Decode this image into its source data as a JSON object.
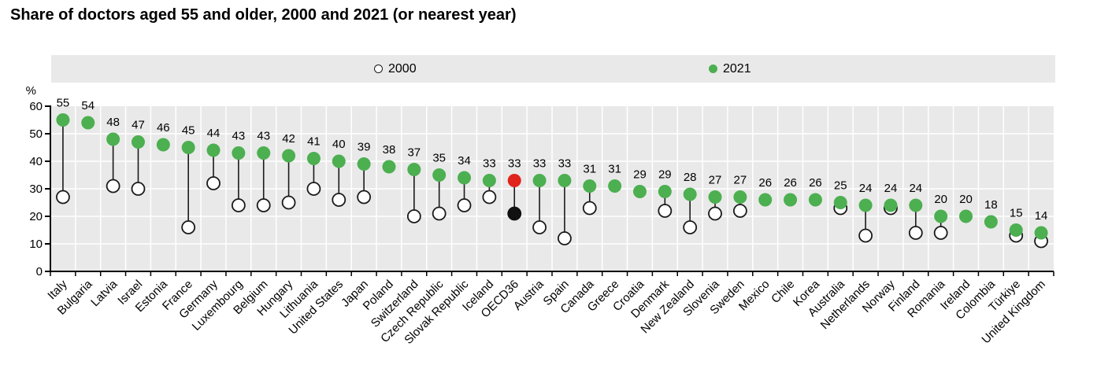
{
  "title": "Share of doctors aged 55 and older, 2000 and 2021 (or nearest year)",
  "y_axis": {
    "unit": "%",
    "ticks": [
      0,
      10,
      20,
      30,
      40,
      50,
      60
    ],
    "max": 60
  },
  "legend": {
    "items": [
      {
        "label": "2000",
        "marker": "open-circle"
      },
      {
        "label": "2021",
        "marker": "filled-circle"
      }
    ]
  },
  "colors": {
    "series_2021": "#4caf50",
    "series_2000_fill": "#ffffff",
    "series_2000_stroke": "#1a1a1a",
    "highlight_2021": "#e0241b",
    "highlight_2000": "#111111",
    "plot_background": "#e9e9e9",
    "gridline": "#ffffff",
    "axis": "#000000",
    "label_text": "#000000"
  },
  "chart_data": {
    "type": "dumbbell",
    "title": "Share of doctors aged 55 and older, 2000 and 2021 (or nearest year)",
    "ylabel": "%",
    "ylim": [
      0,
      60
    ],
    "grid": true,
    "legend_position": "top",
    "value_labels_series": "2021",
    "highlight_category": "OECD36",
    "categories": [
      "Italy",
      "Bulgaria",
      "Latvia",
      "Israel",
      "Estonia",
      "France",
      "Germany",
      "Luxembourg",
      "Belgium",
      "Hungary",
      "Lithuania",
      "United States",
      "Japan",
      "Poland",
      "Switzerland",
      "Czech Republic",
      "Slovak Republic",
      "Iceland",
      "OECD36",
      "Austria",
      "Spain",
      "Canada",
      "Greece",
      "Croatia",
      "Denmark",
      "New Zealand",
      "Slovenia",
      "Sweden",
      "Mexico",
      "Chile",
      "Korea",
      "Australia",
      "Netherlands",
      "Norway",
      "Finland",
      "Romania",
      "Ireland",
      "Colombia",
      "Türkiye",
      "United Kingdom"
    ],
    "series": [
      {
        "name": "2000",
        "values": [
          27,
          null,
          31,
          30,
          null,
          16,
          32,
          24,
          24,
          25,
          30,
          26,
          27,
          null,
          20,
          21,
          24,
          27,
          21,
          16,
          12,
          23,
          null,
          null,
          22,
          16,
          21,
          22,
          null,
          null,
          null,
          23,
          13,
          23,
          14,
          14,
          null,
          null,
          13,
          11
        ]
      },
      {
        "name": "2021",
        "values": [
          55,
          54,
          48,
          47,
          46,
          45,
          44,
          43,
          43,
          42,
          41,
          40,
          39,
          38,
          37,
          35,
          34,
          33,
          33,
          33,
          33,
          31,
          31,
          29,
          29,
          28,
          27,
          27,
          26,
          26,
          26,
          25,
          24,
          24,
          24,
          20,
          20,
          18,
          15,
          14
        ]
      }
    ]
  }
}
